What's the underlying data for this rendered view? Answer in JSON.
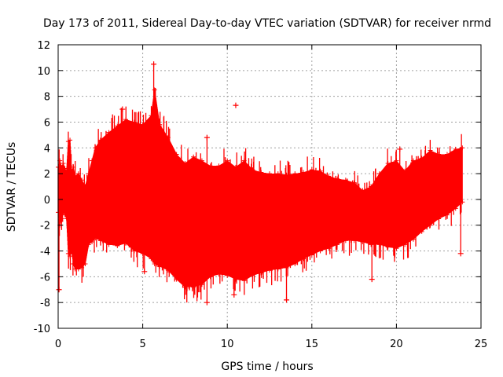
{
  "chart_data": {
    "type": "scatter",
    "title": "Day 173 of 2011, Sidereal Day-to-day VTEC variation (SDTVAR) for receiver nrmd",
    "xlabel": "GPS time / hours",
    "ylabel": "SDTVAR / TECUs",
    "xlim": [
      0,
      25
    ],
    "ylim": [
      -10,
      12
    ],
    "xticks": [
      0,
      5,
      10,
      15,
      20,
      25
    ],
    "yticks": [
      -10,
      -8,
      -6,
      -4,
      -2,
      0,
      2,
      4,
      6,
      8,
      10,
      12
    ],
    "grid": true,
    "marker": "+",
    "color": "#ff0000",
    "series": [
      {
        "name": "SDTVAR",
        "x": [
          0.0,
          0.1,
          0.2,
          0.3,
          0.4,
          0.5,
          0.6,
          0.7,
          0.8,
          0.9,
          1.0,
          1.2,
          1.4,
          1.6,
          1.8,
          2.0,
          2.2,
          2.5,
          3.0,
          3.5,
          4.0,
          4.5,
          5.0,
          5.5,
          5.7,
          6.0,
          6.5,
          7.0,
          7.5,
          8.0,
          8.5,
          9.0,
          9.5,
          10.0,
          10.5,
          11.0,
          11.5,
          12.0,
          12.5,
          13.0,
          13.5,
          14.0,
          14.5,
          15.0,
          15.5,
          16.0,
          16.5,
          17.0,
          17.5,
          18.0,
          18.5,
          19.0,
          19.5,
          20.0,
          20.5,
          21.0,
          21.5,
          22.0,
          22.5,
          23.0,
          23.5,
          23.9
        ],
        "upper": [
          2.5,
          3.0,
          2.5,
          2.8,
          2.4,
          2.2,
          4.5,
          4.6,
          2.2,
          2.5,
          1.8,
          2.0,
          1.5,
          1.0,
          2.0,
          3.0,
          4.0,
          4.6,
          5.2,
          5.7,
          6.2,
          6.0,
          5.8,
          6.5,
          8.5,
          5.8,
          4.8,
          3.5,
          2.8,
          3.3,
          3.0,
          2.6,
          2.6,
          3.0,
          2.5,
          3.0,
          2.3,
          2.1,
          2.0,
          2.0,
          1.9,
          2.0,
          2.1,
          2.3,
          2.2,
          1.8,
          1.6,
          1.5,
          1.3,
          0.7,
          1.0,
          2.0,
          2.8,
          3.0,
          2.2,
          3.0,
          3.2,
          3.8,
          3.5,
          3.5,
          3.9,
          4.0
        ],
        "lower": [
          -1.0,
          -2.0,
          -1.5,
          -1.0,
          -1.2,
          -1.5,
          -4.2,
          -4.4,
          -4.0,
          -5.0,
          -5.4,
          -5.4,
          -5.3,
          -5.0,
          -3.5,
          -3.3,
          -3.0,
          -3.2,
          -3.5,
          -3.6,
          -3.4,
          -4.0,
          -4.2,
          -4.6,
          -5.0,
          -5.2,
          -5.5,
          -6.2,
          -6.8,
          -6.8,
          -6.6,
          -6.0,
          -5.8,
          -5.9,
          -6.2,
          -6.3,
          -5.9,
          -5.7,
          -5.5,
          -5.4,
          -5.3,
          -5.0,
          -4.6,
          -4.3,
          -4.0,
          -3.8,
          -3.5,
          -3.2,
          -3.2,
          -3.3,
          -3.5,
          -3.5,
          -3.7,
          -3.8,
          -3.5,
          -3.1,
          -2.5,
          -2.0,
          -1.5,
          -1.2,
          -0.7,
          -0.2
        ]
      }
    ],
    "outliers": [
      {
        "x": 10.5,
        "y": 7.3
      },
      {
        "x": 5.65,
        "y": 10.5
      },
      {
        "x": 3.8,
        "y": 7.0
      },
      {
        "x": 8.8,
        "y": 4.8
      },
      {
        "x": 8.8,
        "y": -8.0
      },
      {
        "x": 0.05,
        "y": -7.0
      },
      {
        "x": 13.5,
        "y": -7.8
      },
      {
        "x": 18.55,
        "y": -6.2
      },
      {
        "x": 10.4,
        "y": -7.4
      },
      {
        "x": 20.2,
        "y": 3.9
      },
      {
        "x": 23.8,
        "y": -4.2
      },
      {
        "x": 5.1,
        "y": -5.6
      }
    ]
  }
}
